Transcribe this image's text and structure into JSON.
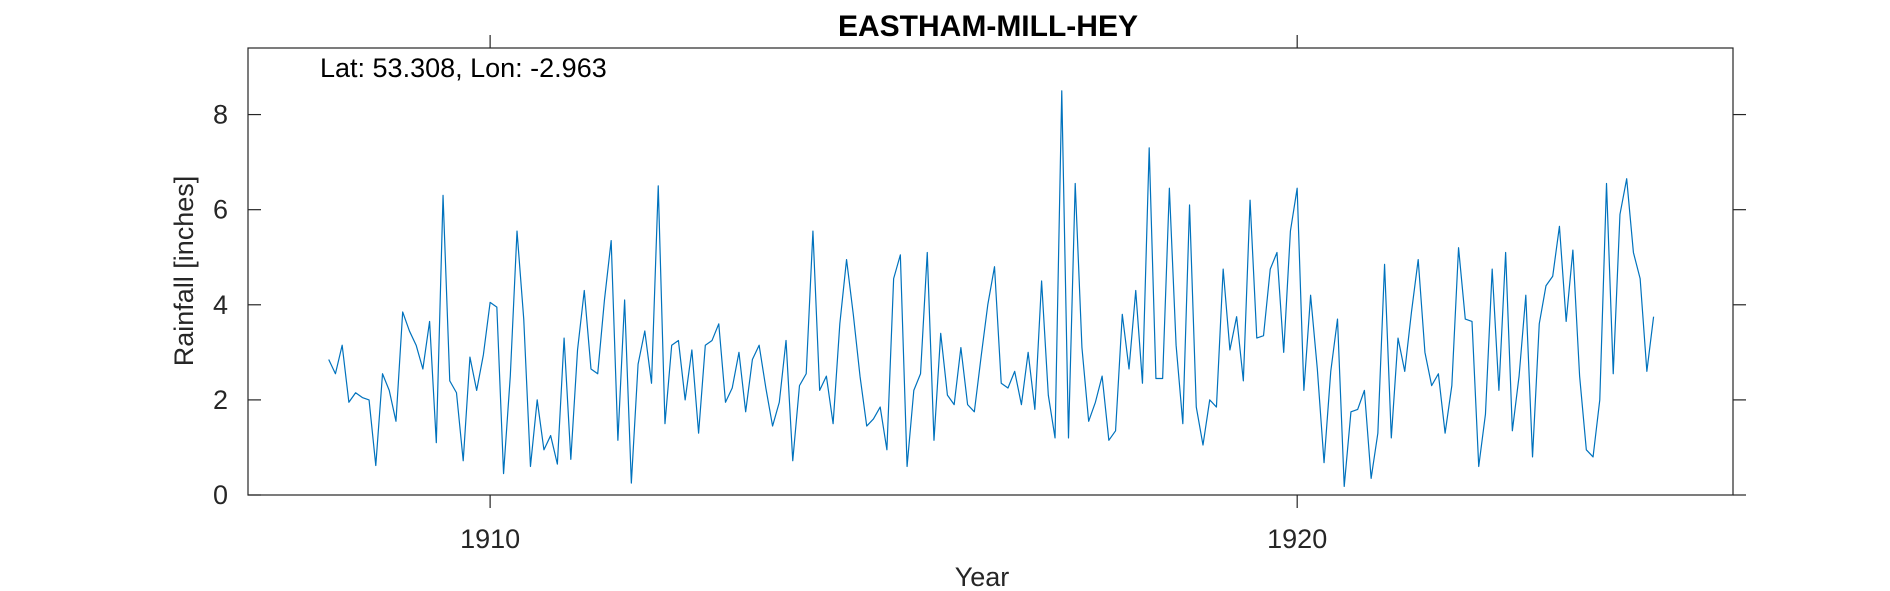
{
  "chart_data": {
    "type": "line",
    "title": "EASTHAM-MILL-HEY",
    "annotation": "Lat: 53.308, Lon: -2.963",
    "xlabel": "Year",
    "ylabel": "Rainfall [inches]",
    "xlim": [
      1907.0,
      1925.4
    ],
    "ylim": [
      0,
      9.4
    ],
    "xticks": [
      1910,
      1920
    ],
    "xtick_labels": [
      "1910",
      "1920"
    ],
    "yticks": [
      0,
      2,
      4,
      6,
      8
    ],
    "ytick_labels": [
      "0",
      "2",
      "4",
      "6",
      "8"
    ],
    "grid": false,
    "color": "#0072bd",
    "series": [
      {
        "start_year": 1908.0,
        "step_years": 0.08333,
        "values": [
          2.85,
          2.55,
          3.15,
          1.95,
          2.15,
          2.05,
          2.0,
          0.62,
          2.55,
          2.2,
          1.55,
          3.85,
          3.45,
          3.15,
          2.65,
          3.65,
          1.1,
          6.3,
          2.4,
          2.15,
          0.72,
          2.9,
          2.2,
          2.95,
          4.05,
          3.95,
          0.45,
          2.5,
          5.55,
          3.7,
          0.6,
          2.0,
          0.95,
          1.25,
          0.65,
          3.3,
          0.75,
          3.05,
          4.3,
          2.65,
          2.55,
          4.1,
          5.35,
          1.15,
          4.1,
          0.25,
          2.75,
          3.45,
          2.35,
          6.5,
          1.5,
          3.15,
          3.25,
          2.0,
          3.05,
          1.3,
          3.15,
          3.25,
          3.6,
          1.95,
          2.25,
          3.0,
          1.75,
          2.85,
          3.15,
          2.25,
          1.45,
          1.95,
          3.25,
          0.72,
          2.3,
          2.55,
          5.55,
          2.2,
          2.5,
          1.5,
          3.6,
          4.95,
          3.8,
          2.5,
          1.45,
          1.6,
          1.85,
          0.95,
          4.55,
          5.05,
          0.6,
          2.2,
          2.55,
          5.1,
          1.15,
          3.4,
          2.1,
          1.9,
          3.1,
          1.9,
          1.75,
          2.9,
          4.0,
          4.8,
          2.35,
          2.25,
          2.6,
          1.9,
          3.0,
          1.8,
          4.5,
          2.1,
          1.2,
          8.5,
          1.2,
          6.55,
          3.1,
          1.55,
          1.95,
          2.5,
          1.15,
          1.35,
          3.8,
          2.65,
          4.3,
          2.35,
          7.3,
          2.45,
          2.45,
          6.45,
          3.15,
          1.5,
          6.1,
          1.85,
          1.05,
          2.0,
          1.85,
          4.75,
          3.05,
          3.75,
          2.4,
          6.2,
          3.3,
          3.35,
          4.75,
          5.1,
          3.0,
          5.55,
          6.45,
          2.2,
          4.2,
          2.65,
          0.68,
          2.6,
          3.7,
          0.18,
          1.75,
          1.8,
          2.2,
          0.35,
          1.3,
          4.85,
          1.2,
          3.3,
          2.6,
          3.85,
          4.95,
          3.0,
          2.3,
          2.55,
          1.3,
          2.3,
          5.2,
          3.7,
          3.65,
          0.6,
          1.7,
          4.75,
          2.2,
          5.1,
          1.35,
          2.5,
          4.2,
          0.8,
          3.6,
          4.4,
          4.6,
          5.65,
          3.65,
          5.15,
          2.5,
          0.95,
          0.8,
          2.0,
          6.55,
          2.55,
          5.9,
          6.65,
          5.1,
          4.55,
          2.6,
          3.75
        ]
      }
    ]
  }
}
